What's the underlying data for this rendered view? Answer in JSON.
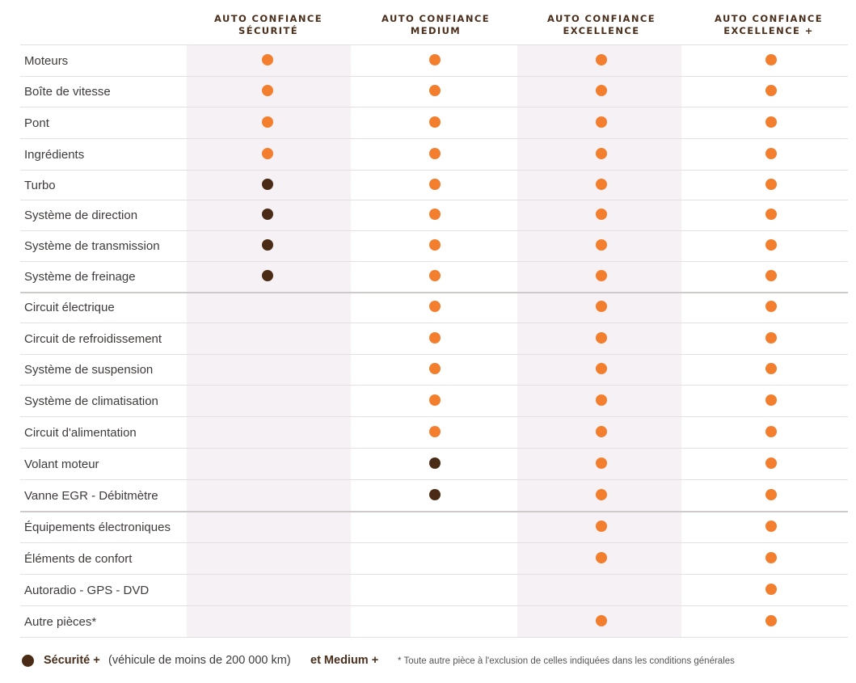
{
  "headers": [
    {
      "line1": "AUTO CONFIANCE",
      "line2": "SÉCURITÉ"
    },
    {
      "line1": "AUTO CONFIANCE",
      "line2": "MEDIUM"
    },
    {
      "line1": "AUTO CONFIANCE",
      "line2": "EXCELLENCE"
    },
    {
      "line1": "AUTO CONFIANCE",
      "line2": "EXCELLENCE +"
    }
  ],
  "rows": [
    {
      "label": "Moteurs",
      "marks": [
        "orange",
        "orange",
        "orange",
        "orange"
      ]
    },
    {
      "label": "Boîte de vitesse",
      "marks": [
        "orange",
        "orange",
        "orange",
        "orange"
      ]
    },
    {
      "label": "Pont",
      "marks": [
        "orange",
        "orange",
        "orange",
        "orange"
      ]
    },
    {
      "label": "Ingrédients",
      "marks": [
        "orange",
        "orange",
        "orange",
        "orange"
      ]
    },
    {
      "label": "Turbo",
      "marks": [
        "brown",
        "orange",
        "orange",
        "orange"
      ]
    },
    {
      "label": "Système de direction",
      "marks": [
        "brown",
        "orange",
        "orange",
        "orange"
      ]
    },
    {
      "label": "Système de transmission",
      "marks": [
        "brown",
        "orange",
        "orange",
        "orange"
      ]
    },
    {
      "label": "Système de freinage",
      "marks": [
        "brown",
        "orange",
        "orange",
        "orange"
      ]
    },
    {
      "label": "Circuit électrique",
      "marks": [
        "",
        "orange",
        "orange",
        "orange"
      ]
    },
    {
      "label": "Circuit de refroidissement",
      "marks": [
        "",
        "orange",
        "orange",
        "orange"
      ]
    },
    {
      "label": "Système de suspension",
      "marks": [
        "",
        "orange",
        "orange",
        "orange"
      ]
    },
    {
      "label": "Système de climatisation",
      "marks": [
        "",
        "orange",
        "orange",
        "orange"
      ]
    },
    {
      "label": "Circuit d'alimentation",
      "marks": [
        "",
        "orange",
        "orange",
        "orange"
      ]
    },
    {
      "label": "Volant moteur",
      "marks": [
        "",
        "brown",
        "orange",
        "orange"
      ]
    },
    {
      "label": "Vanne EGR - Débitmètre",
      "marks": [
        "",
        "brown",
        "orange",
        "orange"
      ]
    },
    {
      "label": "Équipements électroniques",
      "marks": [
        "",
        "",
        "orange",
        "orange"
      ]
    },
    {
      "label": "Éléments de confort",
      "marks": [
        "",
        "",
        "orange",
        "orange"
      ]
    },
    {
      "label": "Autoradio - GPS - DVD",
      "marks": [
        "",
        "",
        "",
        "orange"
      ]
    },
    {
      "label": "Autre pièces*",
      "marks": [
        "",
        "",
        "orange",
        "orange"
      ]
    }
  ],
  "legend": {
    "part1": "Sécurité +",
    "part2": "(véhicule de moins de 200 000 km)",
    "part3": "et Medium +"
  },
  "footnote": "* Toute autre pièce à l'exclusion de celles indiquées dans les conditions générales",
  "colors": {
    "included": "#f37e2e",
    "included_plus": "#4a2b15",
    "accent_text": "#4a2f1c"
  }
}
